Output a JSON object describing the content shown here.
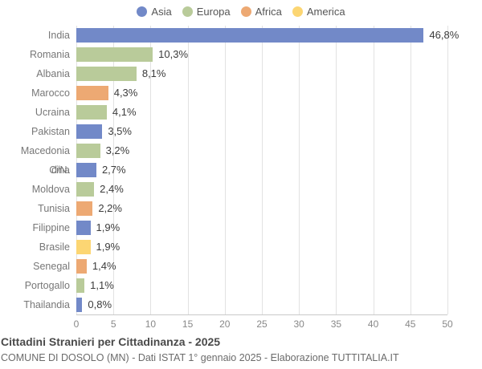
{
  "legend": {
    "items": [
      {
        "label": "Asia",
        "color": "#7289c8"
      },
      {
        "label": "Europa",
        "color": "#b9cb9a"
      },
      {
        "label": "Africa",
        "color": "#edа973"
      },
      {
        "label": "America",
        "color": "#fcd673"
      }
    ]
  },
  "chart_data": {
    "type": "bar",
    "orientation": "horizontal",
    "title": "Cittadini Stranieri per Cittadinanza - 2025",
    "categories": [
      "India",
      "Romania",
      "Albania",
      "Marocco",
      "Ucraina",
      "Pakistan",
      "Macedonia d/N.",
      "Cina",
      "Moldova",
      "Tunisia",
      "Filippine",
      "Brasile",
      "Senegal",
      "Portogallo",
      "Thailandia"
    ],
    "values": [
      46.8,
      10.3,
      8.1,
      4.3,
      4.1,
      3.5,
      3.2,
      2.7,
      2.4,
      2.2,
      1.9,
      1.9,
      1.4,
      1.1,
      0.8
    ],
    "value_labels": [
      "46,8%",
      "10,3%",
      "8,1%",
      "4,3%",
      "4,1%",
      "3,5%",
      "3,2%",
      "2,7%",
      "2,4%",
      "2,2%",
      "1,9%",
      "1,9%",
      "1,4%",
      "1,1%",
      "0,8%"
    ],
    "groups": [
      "Asia",
      "Europa",
      "Europa",
      "Africa",
      "Europa",
      "Asia",
      "Europa",
      "Asia",
      "Europa",
      "Africa",
      "Asia",
      "America",
      "Africa",
      "Europa",
      "Asia"
    ],
    "xlabel": "",
    "ylabel": "",
    "xlim": [
      0,
      50
    ],
    "xticks": [
      0,
      5,
      10,
      15,
      20,
      25,
      30,
      35,
      40,
      45,
      50
    ],
    "grid": "vertical",
    "legend_position": "top"
  },
  "footer": {
    "title": "Cittadini Stranieri per Cittadinanza - 2025",
    "subtitle": "COMUNE DI DOSOLO (MN) - Dati ISTAT 1° gennaio 2025 - Elaborazione TUTTITALIA.IT"
  }
}
